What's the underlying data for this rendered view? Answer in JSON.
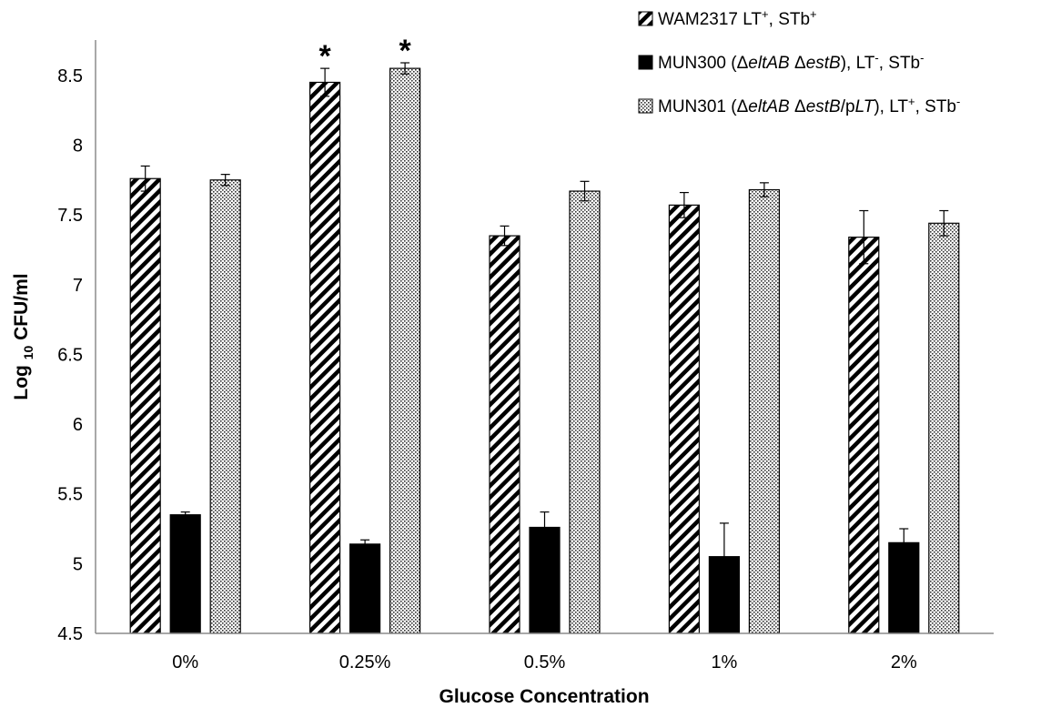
{
  "chart_data": {
    "type": "bar",
    "xlabel": "Glucose Concentration",
    "ylabel": "Log 10 CFU/ml",
    "ylabel_parts": [
      "Log ",
      "10",
      " CFU/ml"
    ],
    "ylim": [
      4.5,
      8.75
    ],
    "yticks": [
      "4.5",
      "5",
      "5.5",
      "6",
      "6.5",
      "7",
      "7.5",
      "8",
      "8.5"
    ],
    "ytick_values": [
      4.5,
      5,
      5.5,
      6,
      6.5,
      7,
      7.5,
      8,
      8.5
    ],
    "categories": [
      "0%",
      "0.25%",
      "0.5%",
      "1%",
      "2%"
    ],
    "grid": false,
    "legend_position": "top-right",
    "series": [
      {
        "name": "WAM2317 LT+, STb+",
        "pattern": "diagonal-hatch",
        "legend_parts": [
          {
            "t": "WAM2317  LT"
          },
          {
            "t": "+",
            "s": "sup"
          },
          {
            "t": ", STb"
          },
          {
            "t": "+",
            "s": "sup"
          }
        ],
        "values": [
          7.76,
          8.45,
          7.35,
          7.57,
          7.34
        ],
        "errors": [
          0.09,
          0.1,
          0.07,
          0.09,
          0.19
        ]
      },
      {
        "name": "MUN300 (ΔeltAB ΔestB), LT-, STb-",
        "pattern": "solid-black",
        "legend_parts": [
          {
            "t": "MUN300 (Δ"
          },
          {
            "t": "eltAB",
            "s": "i"
          },
          {
            "t": " Δ"
          },
          {
            "t": "estB",
            "s": "i"
          },
          {
            "t": "), LT"
          },
          {
            "t": "-",
            "s": "sup"
          },
          {
            "t": ", STb"
          },
          {
            "t": "-",
            "s": "sup"
          }
        ],
        "values": [
          5.35,
          5.14,
          5.26,
          5.05,
          5.15
        ],
        "errors": [
          0.02,
          0.03,
          0.11,
          0.24,
          0.1
        ]
      },
      {
        "name": "MUN301 (ΔeltAB ΔestB/pLT), LT+, STb-",
        "pattern": "dotted",
        "legend_parts": [
          {
            "t": "MUN301 (Δ"
          },
          {
            "t": "eltAB",
            "s": "i"
          },
          {
            "t": " Δ"
          },
          {
            "t": "estB",
            "s": "i"
          },
          {
            "t": "/p"
          },
          {
            "t": "LT",
            "s": "i"
          },
          {
            "t": "), LT"
          },
          {
            "t": "+",
            "s": "sup"
          },
          {
            "t": ", STb"
          },
          {
            "t": "-",
            "s": "sup"
          }
        ],
        "values": [
          7.75,
          8.55,
          7.67,
          7.68,
          7.44
        ],
        "errors": [
          0.04,
          0.04,
          0.07,
          0.05,
          0.09
        ]
      }
    ],
    "annotations": [
      {
        "text": "*",
        "category": "0.25%",
        "series": 0
      },
      {
        "text": "*",
        "category": "0.25%",
        "series": 2
      }
    ]
  }
}
